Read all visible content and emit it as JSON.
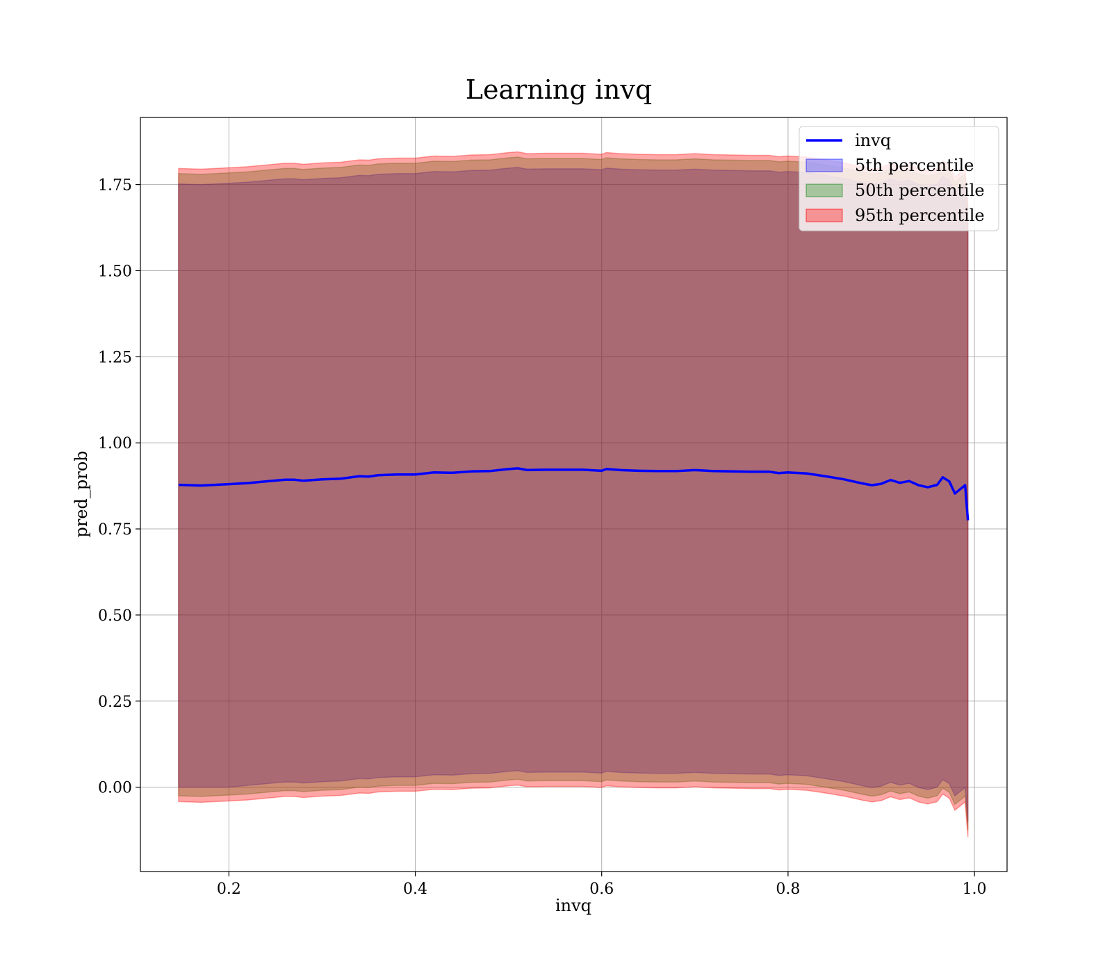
{
  "chart_data": {
    "type": "line",
    "title": "Learning invq",
    "xlabel": "invq",
    "ylabel": "pred_prob",
    "xlim": [
      0.105,
      1.035
    ],
    "ylim": [
      -0.245,
      1.945
    ],
    "xticks": [
      0.2,
      0.4,
      0.6,
      0.8,
      1.0
    ],
    "xtick_labels": [
      "0.2",
      "0.4",
      "0.6",
      "0.8",
      "1.0"
    ],
    "yticks": [
      0.0,
      0.25,
      0.5,
      0.75,
      1.0,
      1.25,
      1.5,
      1.75
    ],
    "ytick_labels": [
      "0.00",
      "0.25",
      "0.50",
      "0.75",
      "1.00",
      "1.25",
      "1.50",
      "1.75"
    ],
    "grid": true,
    "legend": {
      "placement": "top-right"
    },
    "x": [
      0.146,
      0.17,
      0.2,
      0.22,
      0.24,
      0.26,
      0.27,
      0.28,
      0.3,
      0.32,
      0.34,
      0.35,
      0.36,
      0.38,
      0.4,
      0.42,
      0.44,
      0.46,
      0.48,
      0.5,
      0.51,
      0.52,
      0.54,
      0.56,
      0.58,
      0.6,
      0.605,
      0.62,
      0.64,
      0.66,
      0.68,
      0.7,
      0.72,
      0.74,
      0.76,
      0.78,
      0.79,
      0.8,
      0.82,
      0.84,
      0.86,
      0.88,
      0.89,
      0.9,
      0.91,
      0.92,
      0.93,
      0.94,
      0.95,
      0.96,
      0.966,
      0.973,
      0.979,
      0.985,
      0.99,
      0.993
    ],
    "series": [
      {
        "name": "invq",
        "kind": "line",
        "color": "#0000ff",
        "values": [
          0.878,
          0.876,
          0.88,
          0.883,
          0.888,
          0.893,
          0.893,
          0.89,
          0.894,
          0.896,
          0.903,
          0.902,
          0.906,
          0.908,
          0.908,
          0.914,
          0.913,
          0.917,
          0.918,
          0.924,
          0.926,
          0.921,
          0.922,
          0.922,
          0.922,
          0.919,
          0.924,
          0.921,
          0.919,
          0.918,
          0.918,
          0.921,
          0.918,
          0.917,
          0.916,
          0.916,
          0.912,
          0.914,
          0.911,
          0.903,
          0.894,
          0.882,
          0.877,
          0.881,
          0.892,
          0.884,
          0.889,
          0.877,
          0.871,
          0.878,
          0.9,
          0.888,
          0.853,
          0.866,
          0.877,
          0.775
        ]
      },
      {
        "name": "5th percentile",
        "kind": "band",
        "color": "#0000ff",
        "opacity": 0.3,
        "lower": [
          0.0,
          0.0,
          0.0,
          0.005,
          0.01,
          0.015,
          0.015,
          0.012,
          0.016,
          0.018,
          0.025,
          0.024,
          0.028,
          0.03,
          0.03,
          0.036,
          0.035,
          0.039,
          0.04,
          0.046,
          0.048,
          0.043,
          0.044,
          0.044,
          0.044,
          0.041,
          0.046,
          0.043,
          0.041,
          0.04,
          0.04,
          0.043,
          0.04,
          0.039,
          0.038,
          0.038,
          0.034,
          0.036,
          0.033,
          0.025,
          0.016,
          0.004,
          -0.001,
          0.003,
          0.014,
          0.006,
          0.011,
          -0.001,
          -0.007,
          0.0,
          0.022,
          0.01,
          -0.025,
          -0.012,
          -0.001,
          -0.1
        ],
        "upper": [
          1.752,
          1.75,
          1.754,
          1.757,
          1.762,
          1.767,
          1.767,
          1.764,
          1.768,
          1.77,
          1.777,
          1.776,
          1.78,
          1.782,
          1.782,
          1.788,
          1.787,
          1.791,
          1.792,
          1.798,
          1.8,
          1.795,
          1.796,
          1.796,
          1.796,
          1.793,
          1.798,
          1.795,
          1.793,
          1.792,
          1.792,
          1.795,
          1.792,
          1.791,
          1.79,
          1.79,
          1.786,
          1.788,
          1.785,
          1.777,
          1.768,
          1.756,
          1.751,
          1.755,
          1.766,
          1.758,
          1.763,
          1.751,
          1.745,
          1.752,
          1.774,
          1.762,
          1.727,
          1.74,
          1.751,
          1.65
        ]
      },
      {
        "name": "50th percentile",
        "kind": "band",
        "color": "#008000",
        "opacity": 0.3,
        "lower": [
          -0.025,
          -0.027,
          -0.023,
          -0.02,
          -0.015,
          -0.01,
          -0.01,
          -0.013,
          -0.009,
          -0.007,
          0.0,
          -0.001,
          0.003,
          0.005,
          0.005,
          0.011,
          0.01,
          0.014,
          0.015,
          0.021,
          0.023,
          0.018,
          0.019,
          0.019,
          0.019,
          0.016,
          0.021,
          0.018,
          0.016,
          0.015,
          0.015,
          0.018,
          0.015,
          0.014,
          0.013,
          0.013,
          0.009,
          0.011,
          0.008,
          0.0,
          -0.009,
          -0.021,
          -0.026,
          -0.022,
          -0.011,
          -0.019,
          -0.014,
          -0.026,
          -0.032,
          -0.025,
          -0.003,
          -0.015,
          -0.05,
          -0.037,
          -0.026,
          -0.125
        ],
        "upper": [
          1.782,
          1.78,
          1.784,
          1.787,
          1.792,
          1.797,
          1.797,
          1.794,
          1.798,
          1.8,
          1.807,
          1.806,
          1.81,
          1.812,
          1.812,
          1.818,
          1.817,
          1.821,
          1.822,
          1.828,
          1.83,
          1.825,
          1.826,
          1.826,
          1.826,
          1.823,
          1.828,
          1.825,
          1.823,
          1.822,
          1.822,
          1.825,
          1.822,
          1.821,
          1.82,
          1.82,
          1.816,
          1.818,
          1.815,
          1.807,
          1.798,
          1.786,
          1.781,
          1.785,
          1.796,
          1.788,
          1.793,
          1.781,
          1.775,
          1.782,
          1.804,
          1.792,
          1.757,
          1.77,
          1.781,
          1.68
        ]
      },
      {
        "name": "95th percentile",
        "kind": "band",
        "color": "#ff0000",
        "opacity": 0.35,
        "lower": [
          -0.042,
          -0.044,
          -0.04,
          -0.037,
          -0.032,
          -0.027,
          -0.027,
          -0.03,
          -0.026,
          -0.024,
          -0.017,
          -0.018,
          -0.014,
          -0.012,
          -0.012,
          -0.006,
          -0.007,
          -0.003,
          -0.002,
          0.004,
          0.006,
          0.001,
          0.002,
          0.002,
          0.002,
          -0.001,
          0.004,
          0.001,
          -0.001,
          -0.002,
          -0.002,
          0.001,
          -0.002,
          -0.003,
          -0.004,
          -0.004,
          -0.008,
          -0.006,
          -0.009,
          -0.017,
          -0.026,
          -0.038,
          -0.043,
          -0.039,
          -0.028,
          -0.036,
          -0.031,
          -0.043,
          -0.049,
          -0.042,
          -0.02,
          -0.032,
          -0.067,
          -0.054,
          -0.043,
          -0.145
        ],
        "upper": [
          1.797,
          1.795,
          1.799,
          1.802,
          1.807,
          1.812,
          1.812,
          1.809,
          1.813,
          1.815,
          1.822,
          1.821,
          1.825,
          1.827,
          1.827,
          1.833,
          1.832,
          1.836,
          1.837,
          1.843,
          1.845,
          1.84,
          1.841,
          1.841,
          1.841,
          1.838,
          1.843,
          1.84,
          1.838,
          1.837,
          1.837,
          1.84,
          1.837,
          1.836,
          1.835,
          1.835,
          1.831,
          1.833,
          1.83,
          1.822,
          1.813,
          1.801,
          1.796,
          1.8,
          1.811,
          1.803,
          1.808,
          1.796,
          1.79,
          1.797,
          1.819,
          1.807,
          1.772,
          1.785,
          1.796,
          1.695
        ]
      }
    ]
  }
}
